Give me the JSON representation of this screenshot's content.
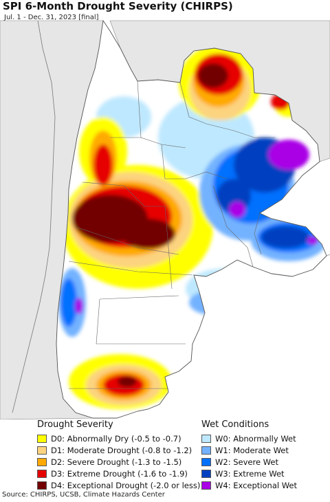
{
  "header": {
    "title": "SPI 6-Month Drought Severity (CHIRPS)",
    "subtitle": "Jul. 1 - Dec. 31, 2023 [final]"
  },
  "legend_drought": {
    "heading": "Drought Severity",
    "items": [
      {
        "label": "D0: Abnormally Dry (-0.5 to -0.7)",
        "color": "#ffff00"
      },
      {
        "label": "D1: Moderate Drought (-0.8 to -1.2)",
        "color": "#fcd37f"
      },
      {
        "label": "D2: Severe Drought (-1.3 to -1.5)",
        "color": "#ffaa00"
      },
      {
        "label": "D3: Extreme Drought (-1.6 to -1.9)",
        "color": "#e60000"
      },
      {
        "label": "D4: Exceptional Drought (-2.0 or less)",
        "color": "#730000"
      }
    ]
  },
  "legend_wet": {
    "heading": "Wet Conditions",
    "items": [
      {
        "label": "W0: Abnormally Wet",
        "color": "#bee8ff"
      },
      {
        "label": "W1: Moderate Wet",
        "color": "#73b2ff"
      },
      {
        "label": "W2: Severe Wet",
        "color": "#0070ff"
      },
      {
        "label": "W3: Extreme Wet",
        "color": "#0040c0"
      },
      {
        "label": "W4: Exceptional Wet",
        "color": "#a900e6"
      }
    ]
  },
  "footer": {
    "source": "Source: CHIRPS, UCSB, Climate Hazards Center"
  }
}
